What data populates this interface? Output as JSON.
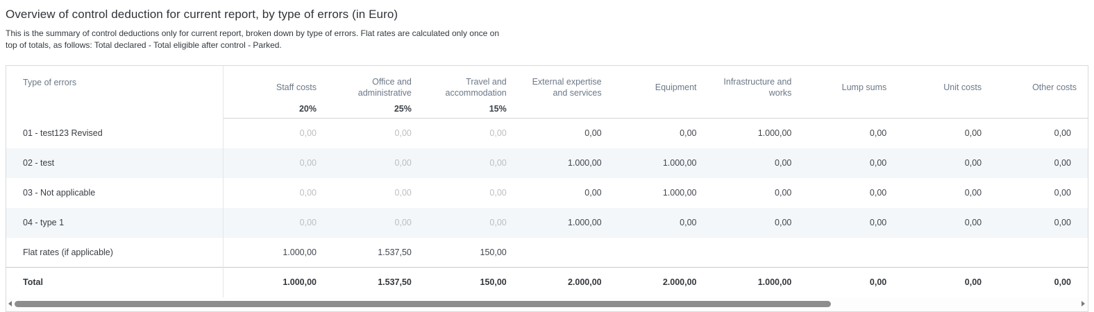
{
  "page": {
    "title": "Overview of control deduction for current report, by type of errors (in Euro)",
    "subtitle": "This is the summary of control deductions only for current report, broken down by type of errors. Flat rates are calculated only once on top of totals, as follows: Total declared - Total eligible after control - Parked."
  },
  "table": {
    "first_column_header": "Type of errors",
    "columns": [
      {
        "label": "Staff costs",
        "percent": "20%"
      },
      {
        "label": "Office and administrative",
        "percent": "25%"
      },
      {
        "label": "Travel and accommodation",
        "percent": "15%"
      },
      {
        "label": "External expertise and services",
        "percent": ""
      },
      {
        "label": "Equipment",
        "percent": ""
      },
      {
        "label": "Infrastructure and works",
        "percent": ""
      },
      {
        "label": "Lump sums",
        "percent": ""
      },
      {
        "label": "Unit costs",
        "percent": ""
      },
      {
        "label": "Other costs",
        "percent": ""
      }
    ],
    "rows": [
      {
        "label": "01 - test123 Revised",
        "kind": "error",
        "values": [
          "0,00",
          "0,00",
          "0,00",
          "0,00",
          "0,00",
          "1.000,00",
          "0,00",
          "0,00",
          "0,00"
        ]
      },
      {
        "label": "02 - test",
        "kind": "error",
        "values": [
          "0,00",
          "0,00",
          "0,00",
          "1.000,00",
          "1.000,00",
          "0,00",
          "0,00",
          "0,00",
          "0,00"
        ]
      },
      {
        "label": "03 - Not applicable",
        "kind": "error",
        "values": [
          "0,00",
          "0,00",
          "0,00",
          "0,00",
          "1.000,00",
          "0,00",
          "0,00",
          "0,00",
          "0,00"
        ]
      },
      {
        "label": "04 - type 1",
        "kind": "error",
        "values": [
          "0,00",
          "0,00",
          "0,00",
          "1.000,00",
          "0,00",
          "0,00",
          "0,00",
          "0,00",
          "0,00"
        ]
      },
      {
        "label": "Flat rates (if applicable)",
        "kind": "flat",
        "values": [
          "1.000,00",
          "1.537,50",
          "150,00",
          "",
          "",
          "",
          "",
          "",
          ""
        ]
      },
      {
        "label": "Total",
        "kind": "total",
        "values": [
          "1.000,00",
          "1.537,50",
          "150,00",
          "2.000,00",
          "2.000,00",
          "1.000,00",
          "0,00",
          "0,00",
          "0,00"
        ]
      }
    ]
  },
  "scrollbar": {
    "left_icon": "scrollbar-left-arrow",
    "right_icon": "scrollbar-right-arrow"
  },
  "colors": {
    "header_text": "#6c7887",
    "value_text": "#40464d",
    "muted_value_text": "#bcbebf",
    "row_stripe": "#f3f7fa",
    "outer_border": "#d8dadb",
    "total_divider": "#c3cad1",
    "scrollbar_thumb": "#8d8d8d"
  }
}
